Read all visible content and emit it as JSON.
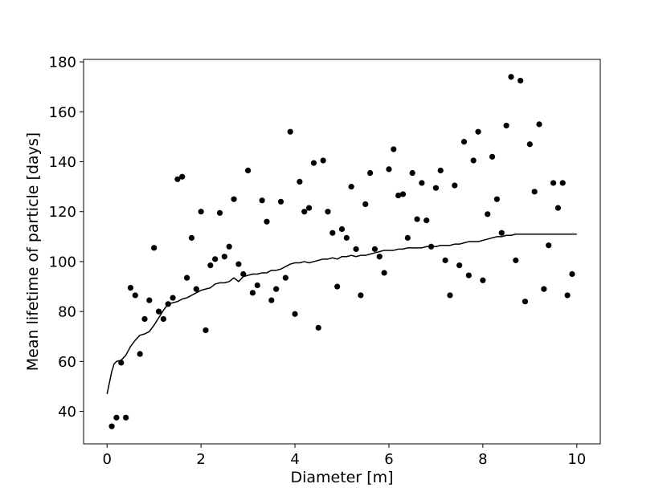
{
  "chart_data": {
    "type": "scatter",
    "title": "",
    "xlabel": "Diameter [m]",
    "ylabel": "Mean lifetime of particle [days]",
    "xlim": [
      -0.5,
      10.5
    ],
    "ylim": [
      27,
      181
    ],
    "xticks": [
      0,
      2,
      4,
      6,
      8,
      10
    ],
    "yticks": [
      40,
      60,
      80,
      100,
      120,
      140,
      160,
      180
    ],
    "grid": false,
    "legend": "none",
    "series": [
      {
        "type": "scatter",
        "color": "#000000",
        "points": [
          [
            0.1,
            34
          ],
          [
            0.2,
            37.5
          ],
          [
            0.3,
            59.5
          ],
          [
            0.4,
            37.5
          ],
          [
            0.5,
            89.5
          ],
          [
            0.6,
            86.5
          ],
          [
            0.7,
            63
          ],
          [
            0.8,
            77
          ],
          [
            0.9,
            84.5
          ],
          [
            1.0,
            105.5
          ],
          [
            1.1,
            80
          ],
          [
            1.2,
            77
          ],
          [
            1.3,
            83
          ],
          [
            1.4,
            85.5
          ],
          [
            1.5,
            133
          ],
          [
            1.6,
            134
          ],
          [
            1.7,
            93.5
          ],
          [
            1.8,
            109.5
          ],
          [
            1.9,
            89
          ],
          [
            2.0,
            120
          ],
          [
            2.1,
            72.5
          ],
          [
            2.2,
            98.5
          ],
          [
            2.3,
            101
          ],
          [
            2.4,
            119.5
          ],
          [
            2.5,
            102
          ],
          [
            2.6,
            106
          ],
          [
            2.7,
            125
          ],
          [
            2.8,
            99
          ],
          [
            2.9,
            95
          ],
          [
            3.0,
            136.5
          ],
          [
            3.1,
            87.5
          ],
          [
            3.2,
            90.5
          ],
          [
            3.3,
            124.5
          ],
          [
            3.4,
            116
          ],
          [
            3.5,
            84.5
          ],
          [
            3.6,
            89
          ],
          [
            3.7,
            124
          ],
          [
            3.8,
            93.5
          ],
          [
            3.9,
            152
          ],
          [
            4.0,
            79
          ],
          [
            4.1,
            132
          ],
          [
            4.2,
            120
          ],
          [
            4.3,
            121.5
          ],
          [
            4.4,
            139.5
          ],
          [
            4.5,
            73.5
          ],
          [
            4.6,
            140.5
          ],
          [
            4.7,
            120
          ],
          [
            4.8,
            111.5
          ],
          [
            4.9,
            90
          ],
          [
            5.0,
            113
          ],
          [
            5.1,
            109.5
          ],
          [
            5.2,
            130
          ],
          [
            5.3,
            105
          ],
          [
            5.4,
            86.5
          ],
          [
            5.5,
            123
          ],
          [
            5.6,
            135.5
          ],
          [
            5.7,
            105
          ],
          [
            5.8,
            102
          ],
          [
            5.9,
            95.5
          ],
          [
            6.0,
            137
          ],
          [
            6.1,
            145
          ],
          [
            6.2,
            126.5
          ],
          [
            6.3,
            127
          ],
          [
            6.4,
            109.5
          ],
          [
            6.5,
            135.5
          ],
          [
            6.6,
            117
          ],
          [
            6.7,
            131.5
          ],
          [
            6.8,
            116.5
          ],
          [
            6.9,
            106
          ],
          [
            7.0,
            129.5
          ],
          [
            7.1,
            136.5
          ],
          [
            7.2,
            100.5
          ],
          [
            7.3,
            86.5
          ],
          [
            7.4,
            130.5
          ],
          [
            7.5,
            98.5
          ],
          [
            7.6,
            148
          ],
          [
            7.7,
            94.5
          ],
          [
            7.8,
            140.5
          ],
          [
            7.9,
            152
          ],
          [
            8.0,
            92.5
          ],
          [
            8.1,
            119
          ],
          [
            8.2,
            142
          ],
          [
            8.3,
            125
          ],
          [
            8.4,
            111.5
          ],
          [
            8.5,
            154.5
          ],
          [
            8.6,
            174
          ],
          [
            8.7,
            100.5
          ],
          [
            8.8,
            172.5
          ],
          [
            8.9,
            84
          ],
          [
            9.0,
            147
          ],
          [
            9.1,
            128
          ],
          [
            9.2,
            155
          ],
          [
            9.3,
            89
          ],
          [
            9.4,
            106.5
          ],
          [
            9.5,
            131.5
          ],
          [
            9.6,
            121.5
          ],
          [
            9.7,
            131.5
          ],
          [
            9.8,
            86.5
          ],
          [
            9.9,
            95
          ]
        ]
      },
      {
        "type": "line",
        "color": "#000000",
        "points": [
          [
            0.0,
            47
          ],
          [
            0.1,
            56
          ],
          [
            0.15,
            59
          ],
          [
            0.2,
            60
          ],
          [
            0.3,
            60.5
          ],
          [
            0.4,
            62.5
          ],
          [
            0.5,
            66
          ],
          [
            0.6,
            68.5
          ],
          [
            0.7,
            70.5
          ],
          [
            0.8,
            71
          ],
          [
            0.9,
            72
          ],
          [
            1.0,
            74.5
          ],
          [
            1.1,
            77.5
          ],
          [
            1.2,
            80.5
          ],
          [
            1.3,
            83
          ],
          [
            1.4,
            83.5
          ],
          [
            1.5,
            84
          ],
          [
            1.6,
            85
          ],
          [
            1.7,
            85.5
          ],
          [
            1.8,
            86.5
          ],
          [
            1.9,
            87.5
          ],
          [
            2.0,
            88.5
          ],
          [
            2.1,
            89
          ],
          [
            2.2,
            89.5
          ],
          [
            2.3,
            91
          ],
          [
            2.4,
            91.5
          ],
          [
            2.5,
            91.5
          ],
          [
            2.6,
            92
          ],
          [
            2.7,
            93.5
          ],
          [
            2.8,
            92
          ],
          [
            2.9,
            94
          ],
          [
            3.0,
            94.5
          ],
          [
            3.1,
            95
          ],
          [
            3.2,
            95
          ],
          [
            3.3,
            95.5
          ],
          [
            3.4,
            95.5
          ],
          [
            3.5,
            96.5
          ],
          [
            3.6,
            96.5
          ],
          [
            3.7,
            97
          ],
          [
            3.8,
            98
          ],
          [
            3.9,
            99
          ],
          [
            4.0,
            99.5
          ],
          [
            4.1,
            99.5
          ],
          [
            4.2,
            100
          ],
          [
            4.3,
            99.5
          ],
          [
            4.4,
            100
          ],
          [
            4.5,
            100.5
          ],
          [
            4.6,
            101
          ],
          [
            4.7,
            101
          ],
          [
            4.8,
            101.5
          ],
          [
            4.9,
            101
          ],
          [
            5.0,
            102
          ],
          [
            5.1,
            102
          ],
          [
            5.2,
            102.5
          ],
          [
            5.3,
            102
          ],
          [
            5.4,
            102.5
          ],
          [
            5.5,
            102.5
          ],
          [
            5.6,
            103
          ],
          [
            5.7,
            103.5
          ],
          [
            5.8,
            104
          ],
          [
            5.9,
            104.5
          ],
          [
            6.0,
            104.5
          ],
          [
            6.1,
            104.5
          ],
          [
            6.2,
            105
          ],
          [
            6.3,
            105
          ],
          [
            6.4,
            105.5
          ],
          [
            6.5,
            105.5
          ],
          [
            6.6,
            105.5
          ],
          [
            6.7,
            105.5
          ],
          [
            6.8,
            106
          ],
          [
            6.9,
            106
          ],
          [
            7.0,
            106
          ],
          [
            7.1,
            106.5
          ],
          [
            7.2,
            106.5
          ],
          [
            7.3,
            106.5
          ],
          [
            7.4,
            107
          ],
          [
            7.5,
            107
          ],
          [
            7.6,
            107.5
          ],
          [
            7.7,
            108
          ],
          [
            7.8,
            108
          ],
          [
            7.9,
            108
          ],
          [
            8.0,
            108.5
          ],
          [
            8.1,
            109
          ],
          [
            8.2,
            109.5
          ],
          [
            8.3,
            110
          ],
          [
            8.4,
            110
          ],
          [
            8.5,
            110.5
          ],
          [
            8.6,
            110.5
          ],
          [
            8.7,
            111
          ],
          [
            8.8,
            111
          ],
          [
            8.9,
            111
          ],
          [
            9.0,
            111
          ],
          [
            9.1,
            111
          ],
          [
            9.2,
            111
          ],
          [
            9.3,
            111
          ],
          [
            9.4,
            111
          ],
          [
            9.5,
            111
          ],
          [
            9.6,
            111
          ],
          [
            9.7,
            111
          ],
          [
            9.8,
            111
          ],
          [
            9.9,
            111
          ],
          [
            10.0,
            111
          ]
        ]
      }
    ]
  }
}
